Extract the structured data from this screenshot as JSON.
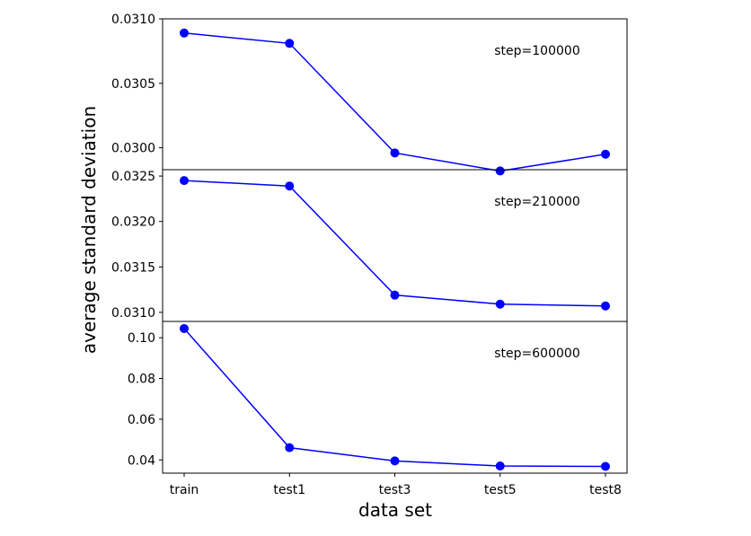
{
  "chart_data": {
    "type": "line",
    "xlabel": "data set",
    "ylabel": "average standard deviation",
    "categories": [
      "train",
      "test1",
      "test3",
      "test5",
      "test8"
    ],
    "line_color": "#0000ff",
    "grid": false,
    "panels": [
      {
        "annotation": "step=100000",
        "ylim": [
          0.02983,
          0.031
        ],
        "yticks": [
          0.03,
          0.0305,
          0.031
        ],
        "ytick_labels": [
          "0.0300",
          "0.0305",
          "0.0310"
        ],
        "values": [
          0.03089,
          0.03081,
          0.02996,
          0.02982,
          0.02995
        ]
      },
      {
        "annotation": "step=210000",
        "ylim": [
          0.0309,
          0.03257
        ],
        "yticks": [
          0.031,
          0.0315,
          0.032,
          0.0325
        ],
        "ytick_labels": [
          "0.0310",
          "0.0315",
          "0.0320",
          "0.0325"
        ],
        "values": [
          0.03245,
          0.03239,
          0.03119,
          0.03109,
          0.03107
        ]
      },
      {
        "annotation": "step=600000",
        "ylim": [
          0.0335,
          0.108
        ],
        "yticks": [
          0.04,
          0.06,
          0.08,
          0.1
        ],
        "ytick_labels": [
          "0.04",
          "0.06",
          "0.08",
          "0.10"
        ],
        "values": [
          0.1045,
          0.046,
          0.0395,
          0.037,
          0.0368
        ]
      }
    ]
  }
}
